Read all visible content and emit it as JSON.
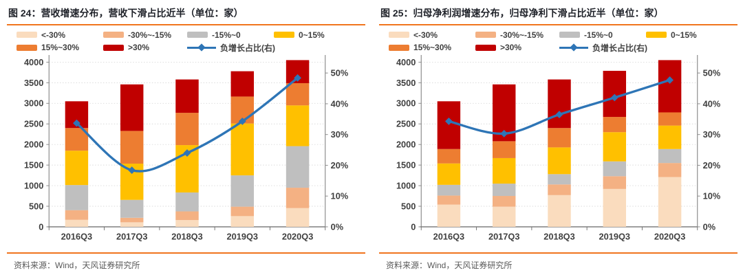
{
  "chart_data": [
    {
      "type": "bar",
      "subtype": "stacked-bar-with-line",
      "title": "图 24：营收增速分布，营收下滑占比近半（单位：家）",
      "source": "资料来源：Wind，天风证券研究所",
      "categories": [
        "2016Q3",
        "2017Q3",
        "2018Q3",
        "2019Q3",
        "2020Q3"
      ],
      "left_axis": {
        "min": 0,
        "max": 4000,
        "step": 500
      },
      "right_axis": {
        "min": 0,
        "max": 50,
        "step": 10,
        "unit": "%"
      },
      "grid": "dotted-horizontal",
      "legend_position": "top",
      "series": [
        {
          "name": "<-30%",
          "color": "#fadcbe",
          "values": [
            170,
            110,
            165,
            260,
            455
          ]
        },
        {
          "name": "-30%~-15%",
          "color": "#f4b183",
          "values": [
            235,
            110,
            210,
            230,
            495
          ]
        },
        {
          "name": "-15%~0",
          "color": "#bfbfbf",
          "values": [
            610,
            435,
            460,
            760,
            1010
          ]
        },
        {
          "name": "0~15%",
          "color": "#ffc000",
          "values": [
            835,
            880,
            1150,
            1260,
            990
          ]
        },
        {
          "name": "15%~30%",
          "color": "#ed7d31",
          "values": [
            550,
            795,
            785,
            655,
            540
          ]
        },
        {
          "name": ">30%",
          "color": "#c00000",
          "values": [
            650,
            1130,
            810,
            615,
            560
          ]
        }
      ],
      "line": {
        "name": "负增长占比(右)",
        "color": "#2e75b6",
        "axis": "right",
        "values": [
          33.7,
          18.4,
          24.0,
          34.3,
          48.4
        ]
      }
    },
    {
      "type": "bar",
      "subtype": "stacked-bar-with-line",
      "title": "图 25：归母净利润增速分布，归母净利下滑占比近半（单位：家）",
      "source": "资料来源：Wind，天风证券研究所",
      "categories": [
        "2016Q3",
        "2017Q3",
        "2018Q3",
        "2019Q3",
        "2020Q3"
      ],
      "left_axis": {
        "min": 0,
        "max": 4000,
        "step": 500
      },
      "right_axis": {
        "min": 0,
        "max": 50,
        "step": 10,
        "unit": "%"
      },
      "grid": "dotted-horizontal",
      "legend_position": "top",
      "series": [
        {
          "name": "<-30%",
          "color": "#fadcbe",
          "values": [
            540,
            490,
            770,
            920,
            1210
          ]
        },
        {
          "name": "-30%~-15%",
          "color": "#f4b183",
          "values": [
            220,
            260,
            260,
            310,
            340
          ]
        },
        {
          "name": "-15%~0",
          "color": "#bfbfbf",
          "values": [
            260,
            300,
            250,
            360,
            340
          ]
        },
        {
          "name": "0~15%",
          "color": "#ffc000",
          "values": [
            520,
            620,
            650,
            710,
            570
          ]
        },
        {
          "name": "15%~30%",
          "color": "#ed7d31",
          "values": [
            350,
            410,
            470,
            370,
            320
          ]
        },
        {
          "name": ">30%",
          "color": "#c00000",
          "values": [
            1160,
            1380,
            1180,
            1120,
            1270
          ]
        }
      ],
      "line": {
        "name": "负增长占比(右)",
        "color": "#2e75b6",
        "axis": "right",
        "values": [
          34.3,
          30.3,
          36.5,
          42.0,
          47.7
        ]
      }
    }
  ],
  "style_colors": {
    "rule_orange": "#f0741d",
    "axis_label": "#404040",
    "gridline": "#d9d9d9",
    "spine": "#8c8c8c",
    "bottom_spine": "#737373"
  }
}
